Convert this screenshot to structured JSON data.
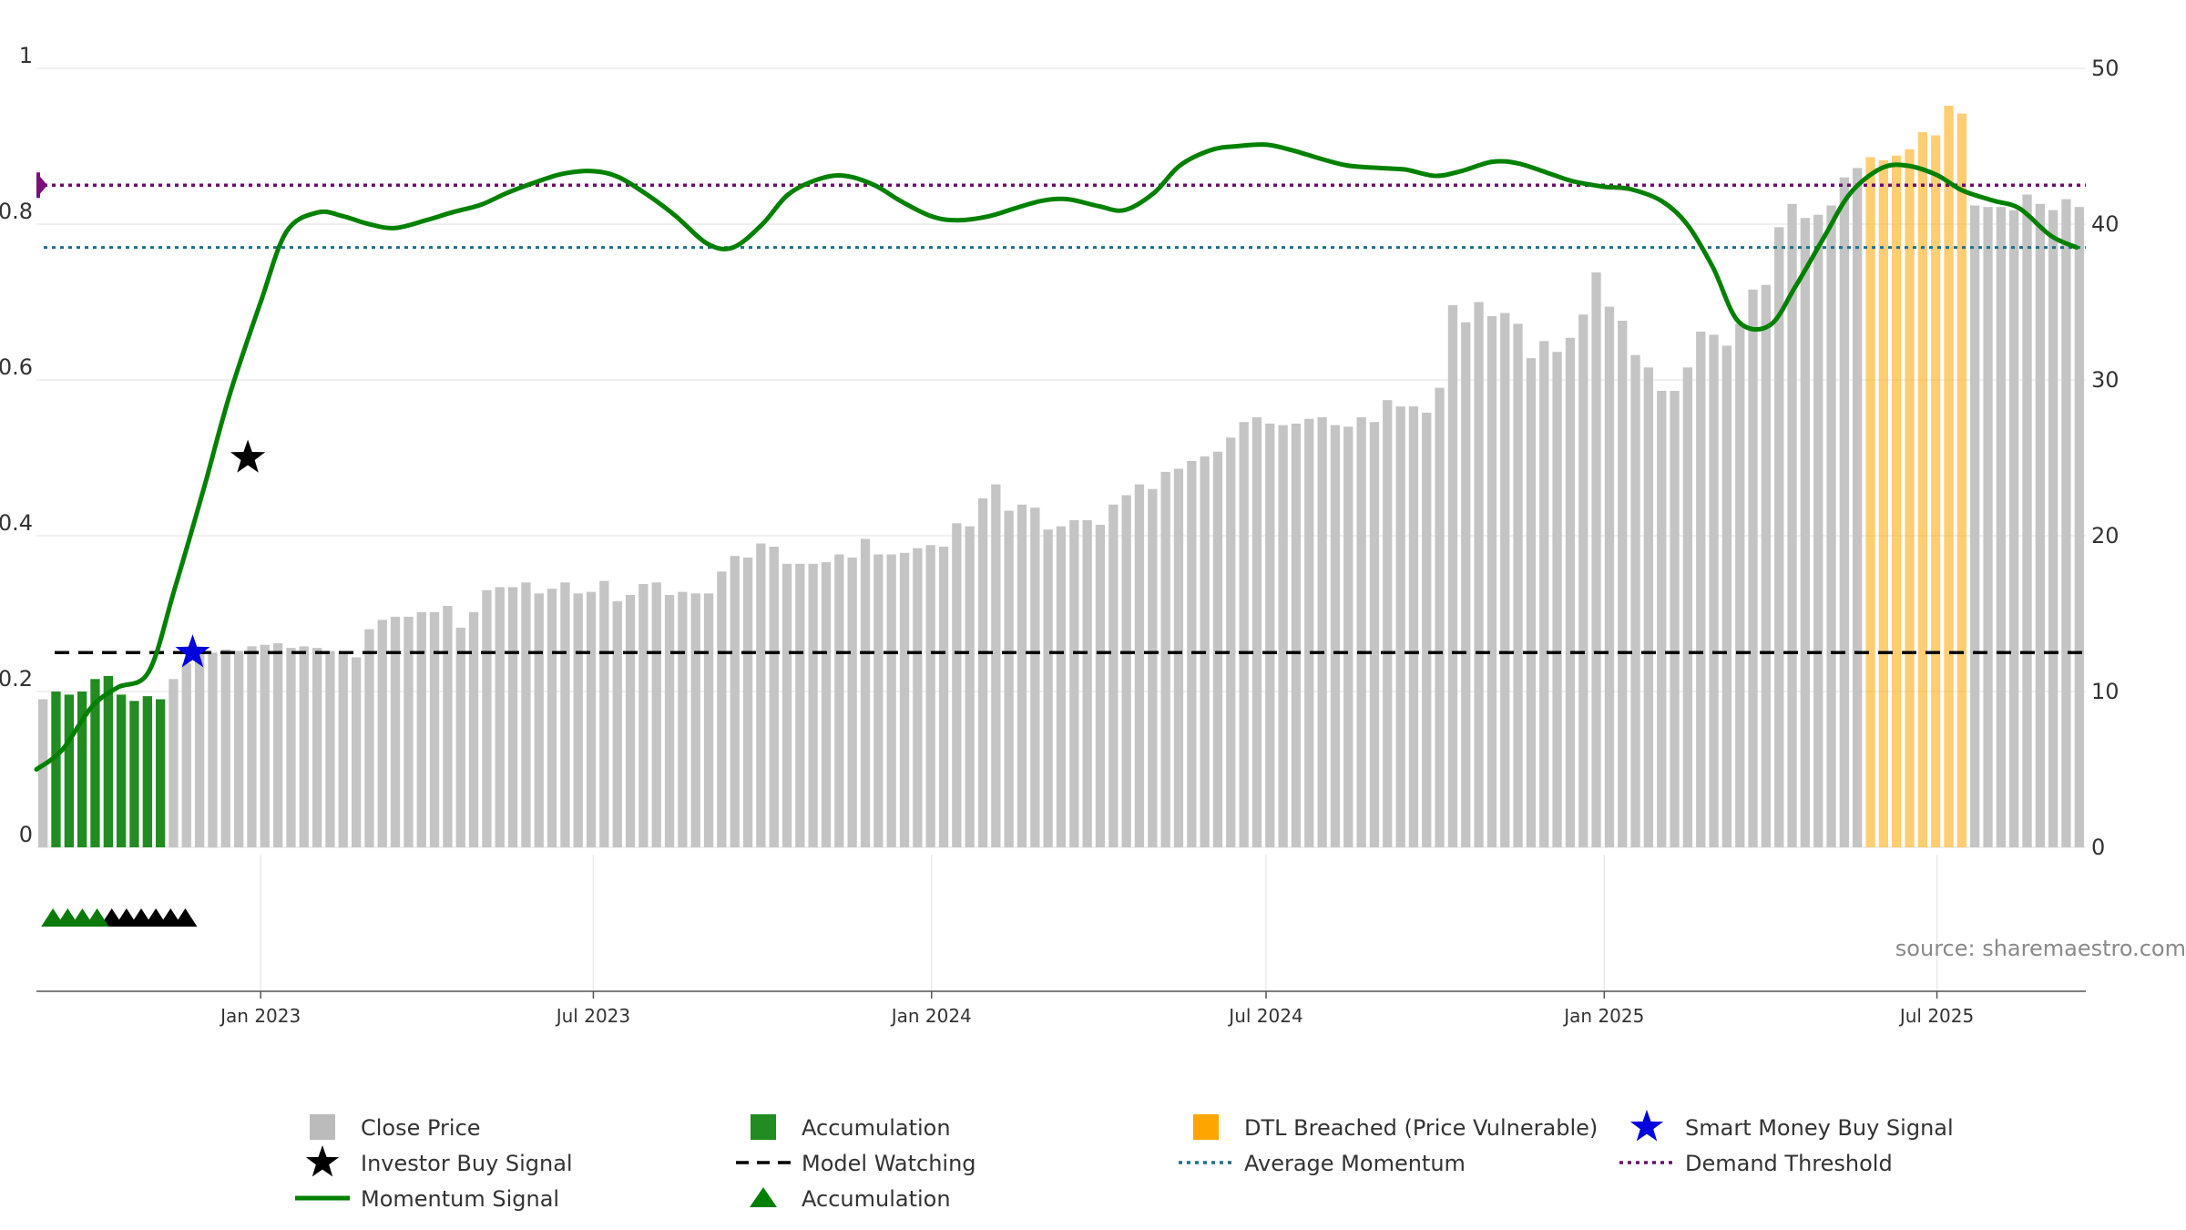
{
  "chart_data": {
    "type": "bar",
    "source_note": "source: sharemaestro.com",
    "x": {
      "ticks": [
        "Jan 2023",
        "Jul 2023",
        "Jan 2024",
        "Jul 2024",
        "Jan 2025",
        "Jul 2025"
      ],
      "range": [
        "2022-09-01",
        "2025-09-20"
      ]
    },
    "y_left": {
      "ticks": [
        "0",
        "0.2",
        "0.4",
        "0.6",
        "0.8",
        "1"
      ],
      "range": [
        0,
        1
      ]
    },
    "y_right": {
      "ticks": [
        "0",
        "10",
        "20",
        "30",
        "40",
        "50"
      ],
      "range": [
        0,
        50
      ]
    },
    "series": [
      {
        "name": "Close Price",
        "axis": "right",
        "kind": "bar",
        "values": [
          9.5,
          10,
          9.8,
          10,
          10.8,
          11,
          9.8,
          9.4,
          9.7,
          9.5,
          10.8,
          11.8,
          12.6,
          12.5,
          12.7,
          12.6,
          12.9,
          13,
          13.1,
          12.8,
          12.9,
          12.8,
          12.6,
          12.5,
          12.2,
          14,
          14.6,
          14.8,
          14.8,
          15.1,
          15.1,
          15.5,
          14.1,
          15.1,
          16.5,
          16.7,
          16.7,
          17,
          16.3,
          16.6,
          17,
          16.3,
          16.4,
          17.1,
          15.8,
          16.2,
          16.9,
          17,
          16.2,
          16.4,
          16.3,
          16.3,
          17.7,
          18.7,
          18.6,
          19.5,
          19.3,
          18.2,
          18.2,
          18.2,
          18.3,
          18.8,
          18.6,
          19.8,
          18.8,
          18.8,
          18.9,
          19.2,
          19.4,
          19.3,
          20.8,
          20.6,
          22.4,
          23.3,
          21.6,
          22,
          21.8,
          20.4,
          20.6,
          21,
          21,
          20.7,
          22,
          22.6,
          23.3,
          23,
          24.1,
          24.3,
          24.8,
          25.1,
          25.4,
          26.3,
          27.3,
          27.6,
          27.2,
          27.1,
          27.2,
          27.5,
          27.6,
          27.1,
          27,
          27.6,
          27.3,
          28.7,
          28.3,
          28.3,
          27.9,
          29.5,
          34.8,
          33.7,
          35,
          34.1,
          34.3,
          33.6,
          31.4,
          32.5,
          31.8,
          32.7,
          34.2,
          36.9,
          34.7,
          33.8,
          31.6,
          30.8,
          29.3,
          29.3,
          30.8,
          33.1,
          32.9,
          32.2,
          33.6,
          35.8,
          36.1,
          39.8,
          41.3,
          40.4,
          40.6,
          41.2,
          43,
          43.6,
          44.3,
          44.1,
          44.4,
          44.8,
          45.9,
          45.7,
          47.6,
          47.1,
          41.2,
          41.1,
          41.1,
          40.9,
          41.9,
          41.3,
          40.9,
          41.6,
          41.1
        ]
      },
      {
        "name": "Accumulation",
        "kind": "bar-highlight",
        "color": "#228b22",
        "start_index": 1,
        "end_index": 9
      },
      {
        "name": "DTL Breached (Price Vulnerable)",
        "kind": "bar-highlight",
        "color": "#ffa500",
        "start_index": 140,
        "end_index": 147
      },
      {
        "name": "Momentum Signal",
        "axis": "left",
        "kind": "line",
        "color": "#008000",
        "x": [
          "2022-09-01",
          "2022-09-15",
          "2022-10-01",
          "2022-10-15",
          "2022-11-01",
          "2022-11-15",
          "2022-12-01",
          "2022-12-15",
          "2023-01-01",
          "2023-01-15",
          "2023-02-01",
          "2023-02-15",
          "2023-03-01",
          "2023-03-15",
          "2023-04-01",
          "2023-04-15",
          "2023-05-01",
          "2023-05-15",
          "2023-06-01",
          "2023-06-15",
          "2023-07-01",
          "2023-07-15",
          "2023-08-01",
          "2023-08-15",
          "2023-09-01",
          "2023-09-15",
          "2023-10-01",
          "2023-10-15",
          "2023-11-01",
          "2023-11-15",
          "2023-12-01",
          "2023-12-15",
          "2024-01-01",
          "2024-01-15",
          "2024-02-01",
          "2024-02-15",
          "2024-03-01",
          "2024-03-15",
          "2024-04-01",
          "2024-04-15",
          "2024-05-01",
          "2024-05-15",
          "2024-06-01",
          "2024-06-15",
          "2024-07-01",
          "2024-07-15",
          "2024-08-01",
          "2024-08-15",
          "2024-09-01",
          "2024-09-15",
          "2024-10-01",
          "2024-10-15",
          "2024-11-01",
          "2024-11-15",
          "2024-12-01",
          "2024-12-15",
          "2025-01-01",
          "2025-01-15",
          "2025-02-01",
          "2025-02-15",
          "2025-03-01",
          "2025-03-15",
          "2025-04-01",
          "2025-04-15",
          "2025-05-01",
          "2025-05-15",
          "2025-06-01",
          "2025-06-15",
          "2025-07-01",
          "2025-07-15",
          "2025-08-01",
          "2025-08-15",
          "2025-09-01",
          "2025-09-15"
        ],
        "values": [
          0.1,
          0.125,
          0.18,
          0.205,
          0.225,
          0.33,
          0.46,
          0.58,
          0.7,
          0.79,
          0.815,
          0.81,
          0.8,
          0.795,
          0.805,
          0.815,
          0.825,
          0.84,
          0.855,
          0.865,
          0.868,
          0.86,
          0.835,
          0.81,
          0.775,
          0.77,
          0.8,
          0.838,
          0.858,
          0.862,
          0.85,
          0.83,
          0.81,
          0.805,
          0.81,
          0.82,
          0.83,
          0.832,
          0.823,
          0.818,
          0.84,
          0.875,
          0.895,
          0.9,
          0.902,
          0.895,
          0.883,
          0.875,
          0.872,
          0.87,
          0.862,
          0.868,
          0.88,
          0.878,
          0.866,
          0.855,
          0.848,
          0.845,
          0.83,
          0.8,
          0.745,
          0.675,
          0.67,
          0.72,
          0.785,
          0.84,
          0.872,
          0.875,
          0.863,
          0.843,
          0.83,
          0.82,
          0.785,
          0.77
        ]
      },
      {
        "name": "Model Watching",
        "axis": "left",
        "kind": "hline",
        "value": 0.25,
        "color": "#000000"
      },
      {
        "name": "Average Momentum",
        "axis": "left",
        "kind": "hline",
        "value": 0.77,
        "color": "#1f6f8b"
      },
      {
        "name": "Demand Threshold",
        "axis": "left",
        "kind": "hline",
        "value": 0.85,
        "color": "#6a0f6a"
      },
      {
        "name": "Smart Money Buy Signal",
        "kind": "marker",
        "marker": "star",
        "color": "#0000dd",
        "x": "2022-11-25",
        "y": 0.25
      },
      {
        "name": "Investor Buy Signal",
        "kind": "marker",
        "marker": "star",
        "color": "#000000",
        "x": "2022-12-25",
        "y": 0.5
      },
      {
        "name": "Accumulation",
        "kind": "triangle-strip",
        "green_dates": [
          "2022-09-10",
          "2022-09-18",
          "2022-09-26",
          "2022-10-04"
        ],
        "black_dates": [
          "2022-10-12",
          "2022-10-20",
          "2022-10-28",
          "2022-11-05",
          "2022-11-13",
          "2022-11-21"
        ]
      }
    ],
    "legend": {
      "placement": "bottom",
      "items": [
        {
          "label": "Close Price",
          "swatch": "square",
          "color": "#bbbbbb"
        },
        {
          "label": "Accumulation",
          "swatch": "square",
          "color": "#228b22"
        },
        {
          "label": "DTL Breached (Price Vulnerable)",
          "swatch": "square",
          "color": "#ffa500"
        },
        {
          "label": "Smart Money Buy Signal",
          "swatch": "star",
          "color": "#0000dd"
        },
        {
          "label": "Investor Buy Signal",
          "swatch": "star",
          "color": "#000000"
        },
        {
          "label": "Model Watching",
          "swatch": "dash",
          "color": "#000000"
        },
        {
          "label": "Average Momentum",
          "swatch": "dot",
          "color": "#1f6f8b"
        },
        {
          "label": "Demand Threshold",
          "swatch": "dot",
          "color": "#6a0f6a"
        },
        {
          "label": "Momentum Signal",
          "swatch": "line",
          "color": "#008000"
        },
        {
          "label": "Accumulation",
          "swatch": "triangle",
          "color": "#008000"
        }
      ]
    },
    "grid": true,
    "colors": {
      "bar": "#c4c4c4",
      "accumulation_bar": "#228b22",
      "dtl_bar": "#ffa500",
      "momentum": "#008000",
      "demand_marker": "#7a0f7a"
    }
  }
}
